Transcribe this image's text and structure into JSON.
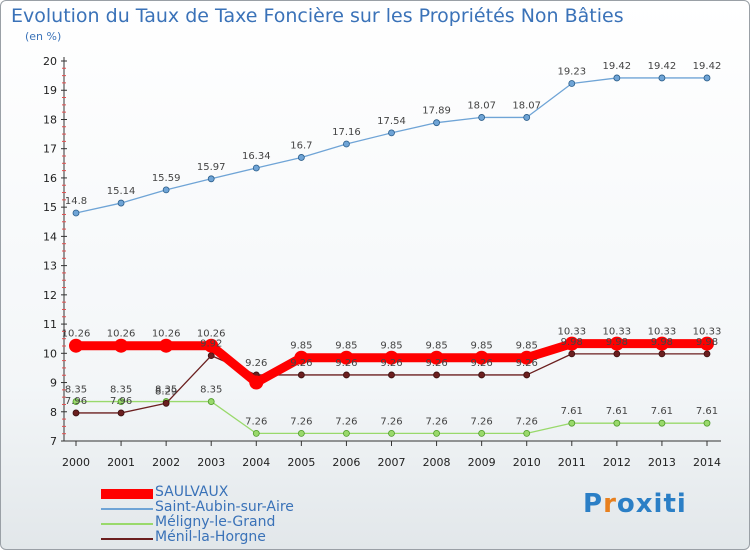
{
  "title": "Evolution du Taux de Taxe Foncière sur les Propriétés Non Bâties",
  "unit": "(en %)",
  "logo": {
    "letters": [
      "P",
      "r",
      "o",
      "x",
      "i",
      "t",
      "i"
    ],
    "colors": [
      "#2b7fc6",
      "#e8801e",
      "#2b7fc6",
      "#2b7fc6",
      "#2b7fc6",
      "#2b7fc6",
      "#2b7fc6"
    ]
  },
  "chart_data": {
    "type": "line",
    "x": [
      "2000",
      "2001",
      "2002",
      "2003",
      "2004",
      "2005",
      "2006",
      "2007",
      "2008",
      "2009",
      "2010",
      "2011",
      "2012",
      "2013",
      "2014"
    ],
    "ylim": [
      7,
      20
    ],
    "yticks": [
      "7",
      "8",
      "9",
      "10",
      "11",
      "12",
      "13",
      "14",
      "15",
      "16",
      "17",
      "18",
      "19",
      "20"
    ],
    "grid": false,
    "legend_position": "bottom-left",
    "series": [
      {
        "name": "SAULVAUX",
        "color": "#ff0000",
        "values": [
          10.26,
          10.26,
          10.26,
          10.26,
          9.0,
          9.85,
          9.85,
          9.85,
          9.85,
          9.85,
          9.85,
          10.33,
          10.33,
          10.33,
          10.33
        ],
        "labels": [
          "10.26",
          "10.26",
          "10.26",
          "10.26",
          "",
          "9.85",
          "9.85",
          "9.85",
          "9.85",
          "9.85",
          "9.85",
          "10.33",
          "10.33",
          "10.33",
          "10.33"
        ]
      },
      {
        "name": "Saint-Aubin-sur-Aire",
        "color": "#6fa4d6",
        "values": [
          14.8,
          15.14,
          15.59,
          15.97,
          16.34,
          16.7,
          17.16,
          17.54,
          17.89,
          18.07,
          18.07,
          19.23,
          19.42,
          19.42,
          19.42
        ],
        "labels": [
          "14.8",
          "15.14",
          "15.59",
          "15.97",
          "16.34",
          "16.7",
          "17.16",
          "17.54",
          "17.89",
          "18.07",
          "18.07",
          "19.23",
          "19.42",
          "19.42",
          "19.42"
        ]
      },
      {
        "name": "Méligny-le-Grand",
        "color": "#99d96b",
        "values": [
          8.35,
          8.35,
          8.35,
          8.35,
          7.26,
          7.26,
          7.26,
          7.26,
          7.26,
          7.26,
          7.26,
          7.61,
          7.61,
          7.61,
          7.61
        ],
        "labels": [
          "8.35",
          "8.35",
          "8.35",
          "8.35",
          "7.26",
          "7.26",
          "7.26",
          "7.26",
          "7.26",
          "7.26",
          "7.26",
          "7.61",
          "7.61",
          "7.61",
          "7.61"
        ]
      },
      {
        "name": "Ménil-la-Horgne",
        "color": "#6b1f1f",
        "values": [
          7.96,
          7.96,
          8.29,
          9.92,
          9.26,
          9.26,
          9.26,
          9.26,
          9.26,
          9.26,
          9.26,
          9.98,
          9.98,
          9.98,
          9.98
        ],
        "labels": [
          "7.96",
          "7.96",
          "8.29",
          "9.92",
          "9.26",
          "9.26",
          "9.26",
          "9.26",
          "9.26",
          "9.26",
          "9.26",
          "9.98",
          "9.98",
          "9.98",
          "9.98"
        ]
      }
    ]
  }
}
